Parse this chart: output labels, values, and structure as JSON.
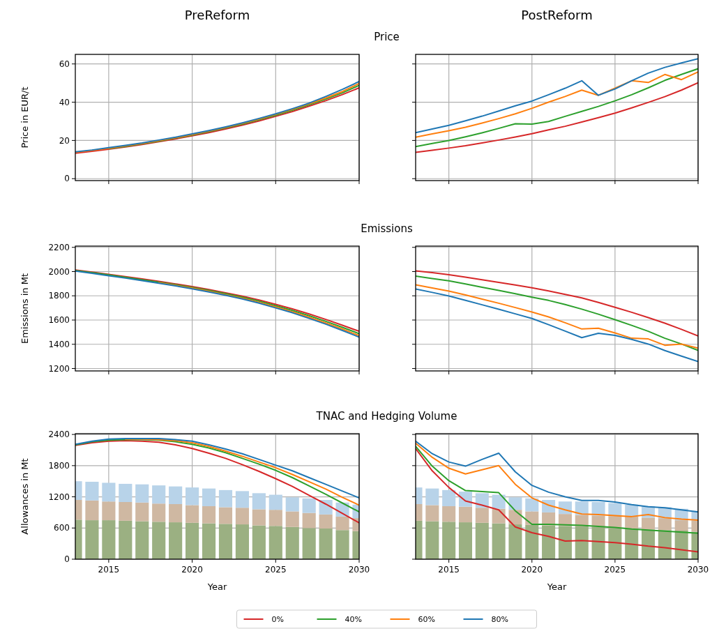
{
  "chart_data": [
    {
      "type": "line",
      "title": "PreReform",
      "ylabel": "Price in EUR/t",
      "x": [
        2013,
        2014,
        2015,
        2016,
        2017,
        2018,
        2019,
        2020,
        2021,
        2022,
        2023,
        2024,
        2025,
        2026,
        2027,
        2028,
        2029,
        2030
      ],
      "xlim": [
        2013,
        2030
      ],
      "xticks": [
        2015,
        2020,
        2025,
        2030
      ],
      "ylim": [
        -1,
        65
      ],
      "yticks": [
        0,
        20,
        40,
        60
      ],
      "grid": true,
      "tick_labels": "y",
      "series": [
        {
          "color": "#d62728",
          "values": [
            13.3,
            14.3,
            15.4,
            16.6,
            17.9,
            19.3,
            20.8,
            22.4,
            24.1,
            26.0,
            28.0,
            30.2,
            32.6,
            35.1,
            37.9,
            40.8,
            44.0,
            47.5
          ]
        },
        {
          "color": "#2ca02c",
          "values": [
            null,
            null,
            15.7,
            16.9,
            18.2,
            19.6,
            21.2,
            22.8,
            24.6,
            26.5,
            28.5,
            30.8,
            33.2,
            35.8,
            38.6,
            41.6,
            44.9,
            48.8
          ]
        },
        {
          "color": "#ff7f0e",
          "values": [
            13.8,
            14.8,
            15.9,
            17.1,
            18.4,
            19.9,
            21.4,
            23.1,
            24.9,
            26.8,
            28.9,
            31.2,
            33.6,
            36.3,
            39.1,
            42.2,
            45.6,
            49.8
          ]
        },
        {
          "color": "#1f77b4",
          "values": [
            14.0,
            15.0,
            16.2,
            17.4,
            18.7,
            20.2,
            21.7,
            23.4,
            25.2,
            27.1,
            29.2,
            31.5,
            33.9,
            36.6,
            39.5,
            43.0,
            46.7,
            50.8
          ]
        }
      ]
    },
    {
      "type": "line",
      "title": "PostReform",
      "subtitle": "Price",
      "x": [
        2013,
        2014,
        2015,
        2016,
        2017,
        2018,
        2019,
        2020,
        2021,
        2022,
        2023,
        2024,
        2025,
        2026,
        2027,
        2028,
        2029,
        2030
      ],
      "xlim": [
        2013,
        2030
      ],
      "xticks": [
        2015,
        2020,
        2025,
        2030
      ],
      "ylim": [
        -1,
        65
      ],
      "yticks": [
        0,
        20,
        40,
        60
      ],
      "grid": true,
      "tick_labels": false,
      "series": [
        {
          "color": "#d62728",
          "values": [
            13.8,
            14.9,
            16.0,
            17.2,
            18.7,
            20.2,
            21.8,
            23.5,
            25.5,
            27.4,
            29.6,
            31.9,
            34.3,
            37.0,
            39.9,
            42.9,
            46.3,
            50.2
          ]
        },
        {
          "color": "#2ca02c",
          "values": [
            16.8,
            18.4,
            20.0,
            21.9,
            24.0,
            26.3,
            28.7,
            28.5,
            29.9,
            32.6,
            35.2,
            37.8,
            40.7,
            43.9,
            47.5,
            51.4,
            54.5,
            57.5
          ]
        },
        {
          "color": "#ff7f0e",
          "values": [
            21.7,
            23.4,
            25.1,
            26.9,
            29.1,
            31.4,
            33.9,
            36.8,
            40.0,
            43.0,
            46.3,
            43.6,
            47.3,
            51.2,
            50.3,
            54.5,
            51.8,
            55.8
          ]
        },
        {
          "color": "#1f77b4",
          "values": [
            24.1,
            26.0,
            27.9,
            30.3,
            32.7,
            35.4,
            38.1,
            40.6,
            43.9,
            47.3,
            51.2,
            43.6,
            46.9,
            51.2,
            55.2,
            58.2,
            60.5,
            62.7
          ]
        }
      ]
    },
    {
      "type": "line",
      "ylabel": "Emissions in Mt",
      "x": [
        2013,
        2014,
        2015,
        2016,
        2017,
        2018,
        2019,
        2020,
        2021,
        2022,
        2023,
        2024,
        2025,
        2026,
        2027,
        2028,
        2029,
        2030
      ],
      "xlim": [
        2013,
        2030
      ],
      "xticks": [
        2015,
        2020,
        2025,
        2030
      ],
      "ylim": [
        1180,
        2210
      ],
      "yticks": [
        1200,
        1400,
        1600,
        1800,
        2000,
        2200
      ],
      "grid": true,
      "tick_labels": "y",
      "series": [
        {
          "color": "#d62728",
          "values": [
            2013,
            1995,
            1977,
            1958,
            1939,
            1919,
            1898,
            1877,
            1852,
            1825,
            1797,
            1766,
            1730,
            1692,
            1650,
            1605,
            1557,
            1507
          ]
        },
        {
          "color": "#2ca02c",
          "values": [
            2009,
            1991,
            1973,
            1953,
            1933,
            1913,
            1892,
            1869,
            1844,
            1817,
            1788,
            1756,
            1718,
            1679,
            1636,
            1589,
            1540,
            1488
          ]
        },
        {
          "color": "#ff7f0e",
          "values": [
            null,
            null,
            null,
            null,
            null,
            1908,
            1886,
            1863,
            1837,
            1809,
            1780,
            1746,
            1708,
            1668,
            1623,
            1576,
            1525,
            1471
          ]
        },
        {
          "color": "#1f77b4",
          "values": [
            2004,
            1985,
            1966,
            1946,
            1925,
            1904,
            1882,
            1858,
            1832,
            1804,
            1774,
            1740,
            1700,
            1660,
            1614,
            1566,
            1514,
            1459
          ]
        }
      ]
    },
    {
      "type": "line",
      "subtitle": "Emissions",
      "x": [
        2013,
        2014,
        2015,
        2016,
        2017,
        2018,
        2019,
        2020,
        2021,
        2022,
        2023,
        2024,
        2025,
        2026,
        2027,
        2028,
        2029,
        2030
      ],
      "xlim": [
        2013,
        2030
      ],
      "xticks": [
        2015,
        2020,
        2025,
        2030
      ],
      "ylim": [
        1180,
        2210
      ],
      "yticks": [
        1200,
        1400,
        1600,
        1800,
        2000,
        2200
      ],
      "grid": true,
      "tick_labels": false,
      "series": [
        {
          "color": "#d62728",
          "values": [
            2006,
            1991,
            1974,
            1954,
            1933,
            1911,
            1889,
            1866,
            1840,
            1812,
            1783,
            1745,
            1705,
            1664,
            1620,
            1574,
            1523,
            1469
          ]
        },
        {
          "color": "#2ca02c",
          "values": [
            1962,
            1943,
            1924,
            1898,
            1871,
            1844,
            1817,
            1789,
            1762,
            1728,
            1690,
            1648,
            1603,
            1556,
            1507,
            1450,
            1402,
            1350
          ]
        },
        {
          "color": "#ff7f0e",
          "values": [
            1891,
            1865,
            1839,
            1807,
            1773,
            1739,
            1703,
            1666,
            1626,
            1578,
            1526,
            1532,
            1494,
            1450,
            1444,
            1392,
            1402,
            1369
          ]
        },
        {
          "color": "#1f77b4",
          "values": [
            1856,
            1828,
            1799,
            1763,
            1726,
            1689,
            1651,
            1613,
            1562,
            1509,
            1455,
            1491,
            1473,
            1440,
            1402,
            1348,
            1302,
            1258
          ]
        }
      ]
    },
    {
      "type": "line",
      "xlabel": "Year",
      "ylabel": "Allowances in Mt",
      "x": [
        2013,
        2014,
        2015,
        2016,
        2017,
        2018,
        2019,
        2020,
        2021,
        2022,
        2023,
        2024,
        2025,
        2026,
        2027,
        2028,
        2029,
        2030
      ],
      "xlim": [
        2013,
        2030
      ],
      "xticks": [
        2015,
        2020,
        2025,
        2030
      ],
      "ylim": [
        0,
        2415
      ],
      "yticks": [
        0,
        600,
        1200,
        1800,
        2400
      ],
      "grid": true,
      "stacked": true,
      "series": [
        {
          "type": "bar",
          "color": "#9bb082",
          "values": [
            760,
            750,
            750,
            740,
            730,
            720,
            710,
            700,
            690,
            680,
            670,
            650,
            640,
            620,
            600,
            590,
            560,
            540
          ]
        },
        {
          "type": "bar",
          "color": "#cfb8a2",
          "values": [
            380,
            380,
            360,
            360,
            360,
            350,
            350,
            340,
            330,
            320,
            320,
            310,
            310,
            300,
            290,
            270,
            260,
            250
          ]
        },
        {
          "type": "bar",
          "color": "#b8d3e9",
          "values": [
            360,
            360,
            360,
            350,
            350,
            350,
            340,
            340,
            340,
            330,
            320,
            310,
            290,
            270,
            280,
            280,
            270,
            260
          ]
        },
        {
          "color": "#d62728",
          "values": [
            2190,
            2240,
            2270,
            2280,
            2270,
            2250,
            2200,
            2130,
            2040,
            1940,
            1820,
            1690,
            1550,
            1400,
            1230,
            1060,
            880,
            700
          ]
        },
        {
          "color": "#2ca02c",
          "values": [
            2200,
            2260,
            2290,
            2300,
            2300,
            2290,
            2260,
            2210,
            2140,
            2050,
            1940,
            1830,
            1710,
            1570,
            1410,
            1250,
            1080,
            910
          ]
        },
        {
          "color": "#ff7f0e",
          "values": [
            null,
            null,
            null,
            2310,
            2310,
            2300,
            2280,
            2240,
            2170,
            2080,
            1980,
            1870,
            1760,
            1630,
            1490,
            1350,
            1190,
            1040
          ]
        },
        {
          "color": "#1f77b4",
          "values": [
            2210,
            2270,
            2310,
            2320,
            2320,
            2320,
            2300,
            2270,
            2200,
            2120,
            2030,
            1920,
            1810,
            1700,
            1570,
            1440,
            1310,
            1180
          ]
        }
      ]
    },
    {
      "type": "line",
      "subtitle": "TNAC and Hedging Volume",
      "xlabel": "Year",
      "x": [
        2013,
        2014,
        2015,
        2016,
        2017,
        2018,
        2019,
        2020,
        2021,
        2022,
        2023,
        2024,
        2025,
        2026,
        2027,
        2028,
        2029,
        2030
      ],
      "xlim": [
        2013,
        2030
      ],
      "xticks": [
        2015,
        2020,
        2025,
        2030
      ],
      "ylim": [
        0,
        2415
      ],
      "yticks": [
        0,
        600,
        1200,
        1800,
        2400
      ],
      "grid": true,
      "tick_labels": "x",
      "legend": "bottom",
      "stacked": true,
      "series": [
        {
          "type": "bar",
          "color": "#9bb082",
          "values": [
            740,
            730,
            720,
            710,
            700,
            690,
            670,
            660,
            650,
            640,
            630,
            620,
            600,
            590,
            570,
            560,
            550,
            530
          ]
        },
        {
          "type": "bar",
          "color": "#cfb8a2",
          "values": [
            320,
            310,
            300,
            300,
            290,
            280,
            280,
            260,
            250,
            230,
            220,
            220,
            230,
            230,
            230,
            230,
            200,
            210
          ]
        },
        {
          "type": "bar",
          "color": "#b8d3e9",
          "values": [
            320,
            320,
            310,
            290,
            280,
            270,
            240,
            250,
            240,
            240,
            260,
            260,
            250,
            230,
            220,
            210,
            220,
            190
          ]
        },
        {
          "name": "0%",
          "color": "#d62728",
          "values": [
            2130,
            1700,
            1380,
            1120,
            1040,
            950,
            620,
            510,
            440,
            350,
            360,
            340,
            320,
            290,
            250,
            220,
            180,
            140
          ]
        },
        {
          "name": "40%",
          "color": "#2ca02c",
          "values": [
            2170,
            1790,
            1510,
            1320,
            1300,
            1280,
            930,
            670,
            670,
            660,
            650,
            630,
            610,
            580,
            560,
            540,
            520,
            500
          ]
        },
        {
          "name": "60%",
          "color": "#ff7f0e",
          "values": [
            2230,
            1960,
            1750,
            1640,
            1720,
            1800,
            1440,
            1180,
            1040,
            950,
            870,
            860,
            840,
            820,
            860,
            800,
            770,
            750
          ]
        },
        {
          "name": "80%",
          "color": "#1f77b4",
          "values": [
            2270,
            2030,
            1870,
            1790,
            1920,
            2040,
            1680,
            1420,
            1290,
            1200,
            1130,
            1130,
            1100,
            1050,
            1010,
            990,
            950,
            910
          ]
        }
      ]
    }
  ]
}
